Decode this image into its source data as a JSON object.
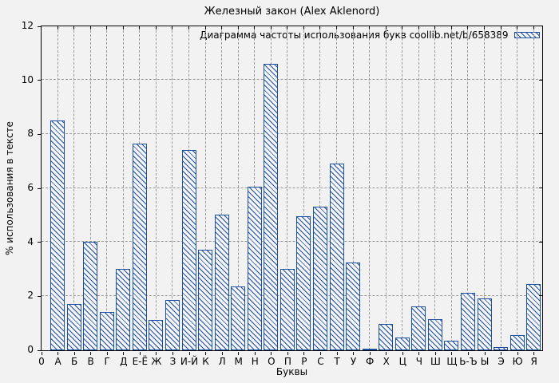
{
  "figure": {
    "background": "#f2f2f2",
    "grid_color": "#999999",
    "axis_color": "#000000"
  },
  "chart_data": {
    "type": "bar",
    "title": "Железный закон (Alex Aklenord)",
    "legend": "Диаграмма частоты использования букв coollib.net/b/658389",
    "legend_position": "top-right-inside",
    "xlabel": "Буквы",
    "ylabel": "% использования в тексте",
    "x_origin_label": "0",
    "ylim": [
      0,
      12
    ],
    "yticks": [
      0,
      2,
      4,
      6,
      8,
      10,
      12
    ],
    "grid": "dashed",
    "bar_color": "#1d4fa3",
    "hatch": "diagonal-down",
    "categories": [
      "А",
      "Б",
      "В",
      "Г",
      "Д",
      "Е-Ё",
      "Ж",
      "З",
      "И-Й",
      "К",
      "Л",
      "М",
      "Н",
      "О",
      "П",
      "Р",
      "С",
      "Т",
      "У",
      "Ф",
      "Х",
      "Ц",
      "Ч",
      "Ш",
      "Щ",
      "Ь-Ъ",
      "Ы",
      "Э",
      "Ю",
      "Я"
    ],
    "values": [
      8.5,
      1.7,
      4.0,
      1.4,
      3.0,
      7.65,
      1.1,
      1.85,
      7.4,
      3.7,
      5.0,
      2.35,
      6.05,
      10.6,
      3.0,
      4.95,
      5.3,
      6.9,
      3.25,
      0.05,
      0.95,
      0.45,
      1.6,
      1.15,
      0.35,
      2.1,
      1.9,
      0.1,
      0.55,
      2.45
    ]
  }
}
